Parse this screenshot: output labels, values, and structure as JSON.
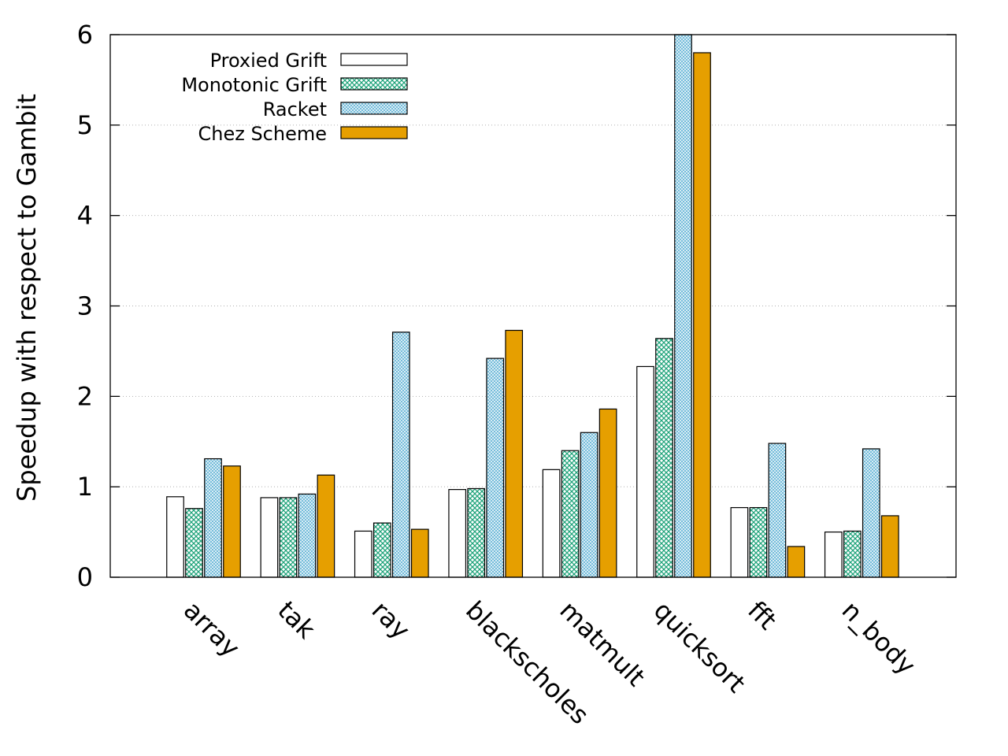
{
  "chart_data": {
    "type": "bar",
    "title": "",
    "xlabel": "",
    "ylabel": "Speedup with respect to Gambit",
    "ylim": [
      0,
      6
    ],
    "yticks": [
      0,
      1,
      2,
      3,
      4,
      5,
      6
    ],
    "grid": "horizontal-dotted",
    "legend_position": "top-left",
    "categories": [
      "array",
      "tak",
      "ray",
      "blackscholes",
      "matmult",
      "quicksort",
      "fft",
      "n_body"
    ],
    "series": [
      {
        "name": "Proxied Grift",
        "fill": "#ffffff",
        "pattern": "none",
        "values": [
          0.89,
          0.88,
          0.51,
          0.97,
          1.19,
          2.33,
          0.77,
          0.5
        ]
      },
      {
        "name": "Monotonic Grift",
        "fill": "#1fa37a",
        "pattern": "crosshatch",
        "values": [
          0.76,
          0.88,
          0.6,
          0.98,
          1.4,
          2.64,
          0.77,
          0.51
        ]
      },
      {
        "name": "Racket",
        "fill": "#6bb8d8",
        "pattern": "fine-crosshatch",
        "values": [
          1.31,
          0.92,
          2.71,
          2.42,
          1.6,
          6.2,
          1.48,
          1.42
        ]
      },
      {
        "name": "Chez Scheme",
        "fill": "#e69f00",
        "pattern": "none",
        "values": [
          1.23,
          1.13,
          0.53,
          2.73,
          1.86,
          5.8,
          0.34,
          0.68
        ]
      }
    ]
  }
}
